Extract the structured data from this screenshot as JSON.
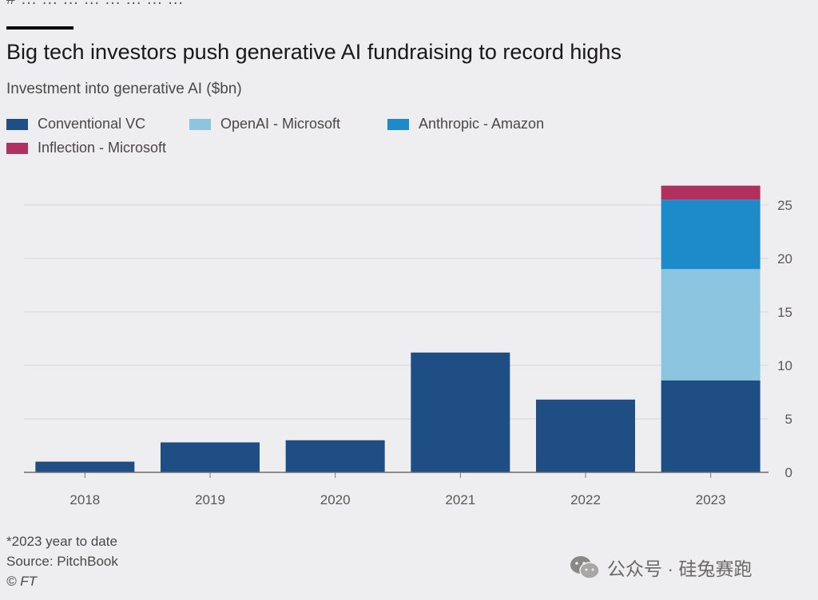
{
  "header": {
    "cut_text": "# ... ... ... ... ... ... ... ...",
    "title": "Big tech investors push generative AI fundraising to record highs",
    "subtitle": "Investment into generative AI ($bn)"
  },
  "chart_data": {
    "type": "bar",
    "stacked": true,
    "title": "Big tech investors push generative AI fundraising to record highs",
    "ylabel": "Investment into generative AI ($bn)",
    "xlabel": "",
    "categories": [
      "2018",
      "2019",
      "2020",
      "2021",
      "2022",
      "2023"
    ],
    "series": [
      {
        "name": "Conventional VC",
        "color": "#1f4e85",
        "values": [
          1.0,
          2.8,
          3.0,
          11.2,
          6.8,
          8.6
        ]
      },
      {
        "name": "OpenAI - Microsoft",
        "color": "#8cc5de",
        "values": [
          0,
          0,
          0,
          0,
          0,
          10.4
        ]
      },
      {
        "name": "Anthropic - Amazon",
        "color": "#1d8bca",
        "values": [
          0,
          0,
          0,
          0,
          0,
          6.5
        ]
      },
      {
        "name": "Inflection - Microsoft",
        "color": "#b0305e",
        "values": [
          0,
          0,
          0,
          0,
          0,
          1.3
        ]
      }
    ],
    "ylim": [
      0,
      27
    ],
    "yticks": [
      0,
      5,
      10,
      15,
      20,
      25
    ],
    "grid": true,
    "y_axis_side": "right",
    "legend_position": "top-left"
  },
  "footer": {
    "note": "*2023 year to date",
    "source": "Source: PitchBook",
    "credit": "© FT"
  },
  "watermark": {
    "text": "公众号 · 硅兔赛跑",
    "icon": "wechat-icon"
  }
}
